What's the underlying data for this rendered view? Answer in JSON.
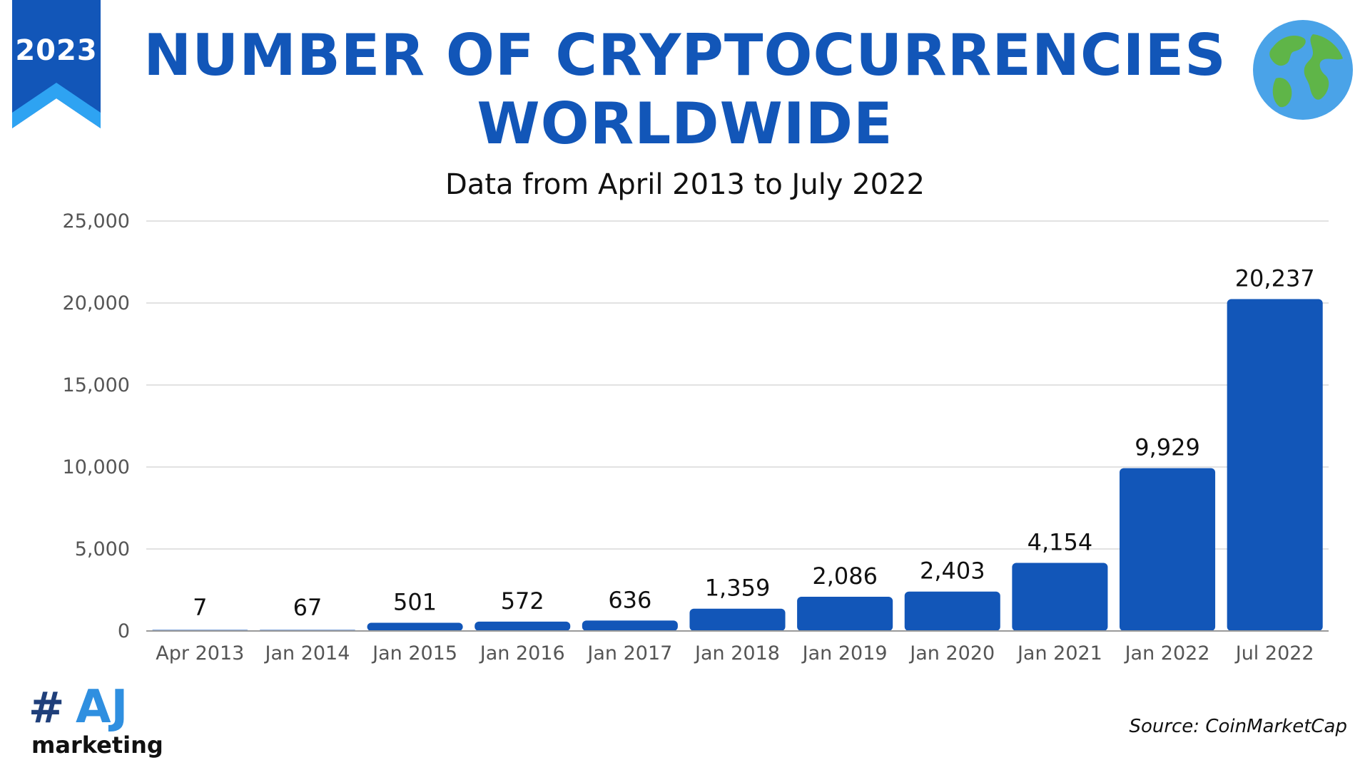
{
  "badge": {
    "year": "2023"
  },
  "header": {
    "title_line1": "NUMBER OF CRYPTOCURRENCIES",
    "title_line2": "WORLDWIDE",
    "subtitle": "Data from April 2013 to July 2022"
  },
  "branding": {
    "hash": "#",
    "name": "AJ",
    "word": "marketing"
  },
  "source": "Source: CoinMarketCap",
  "colors": {
    "accent": "#1256b8",
    "bar": "#1256b8",
    "banner_light": "#2ea3f2",
    "grid": "#d9d9d9",
    "logo_light": "#2f8fe0"
  },
  "icons": {
    "globe": "globe-icon"
  },
  "chart_data": {
    "type": "bar",
    "title": "NUMBER OF CRYPTOCURRENCIES WORLDWIDE",
    "subtitle": "Data from April 2013 to July 2022",
    "xlabel": "",
    "ylabel": "",
    "categories": [
      "Apr 2013",
      "Jan 2014",
      "Jan 2015",
      "Jan 2016",
      "Jan 2017",
      "Jan 2018",
      "Jan 2019",
      "Jan 2020",
      "Jan 2021",
      "Jan 2022",
      "Jul 2022"
    ],
    "values": [
      7,
      67,
      501,
      572,
      636,
      1359,
      2086,
      2403,
      4154,
      9929,
      20237
    ],
    "data_labels": [
      "7",
      "67",
      "501",
      "572",
      "636",
      "1,359",
      "2,086",
      "2,403",
      "4,154",
      "9,929",
      "20,237"
    ],
    "ylim": [
      0,
      25000
    ],
    "yticks": [
      0,
      5000,
      10000,
      15000,
      20000,
      25000
    ],
    "ytick_labels": [
      "0",
      "5,000",
      "10,000",
      "15,000",
      "20,000",
      "25,000"
    ],
    "grid": true,
    "legend": "none"
  }
}
